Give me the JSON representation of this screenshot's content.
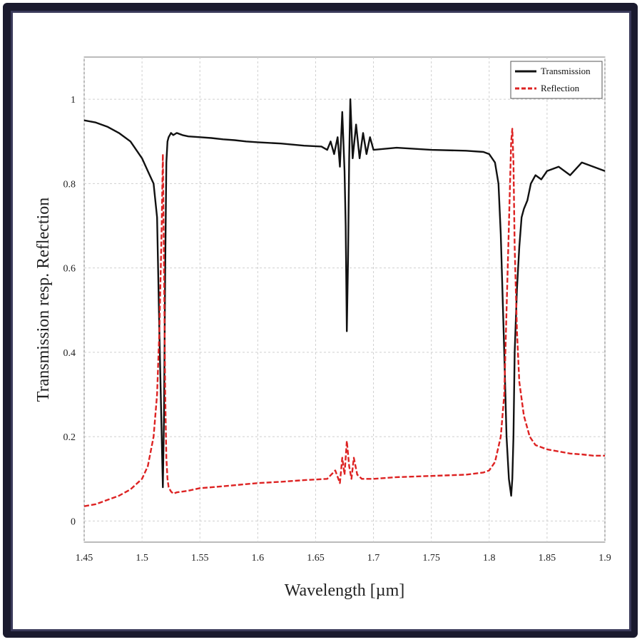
{
  "chart_data": {
    "type": "line",
    "xlabel": "Wavelength [µm]",
    "ylabel": "Transmission resp. Reflection",
    "xlim": [
      1.45,
      1.9
    ],
    "ylim": [
      -0.05,
      1.1
    ],
    "x_ticks": [
      1.45,
      1.5,
      1.55,
      1.6,
      1.65,
      1.7,
      1.75,
      1.8,
      1.85,
      1.9
    ],
    "x_tick_labels": [
      "1.45",
      "1.5",
      "1.55",
      "1.6",
      "1.65",
      "1.7",
      "1.75",
      "1.8",
      "1.85",
      "1.9"
    ],
    "y_ticks": [
      0,
      0.2,
      0.4,
      0.6,
      0.8,
      1
    ],
    "y_tick_labels": [
      "0",
      "0.2",
      "0.4",
      "0.6",
      "0.8",
      "1"
    ],
    "grid": true,
    "legend_position": "top-right",
    "series": [
      {
        "name": "Transmission",
        "color": "#111111",
        "style": "solid",
        "x": [
          1.45,
          1.46,
          1.47,
          1.48,
          1.49,
          1.5,
          1.505,
          1.51,
          1.513,
          1.515,
          1.517,
          1.518,
          1.519,
          1.52,
          1.521,
          1.522,
          1.523,
          1.525,
          1.527,
          1.53,
          1.535,
          1.54,
          1.55,
          1.56,
          1.57,
          1.58,
          1.59,
          1.6,
          1.62,
          1.64,
          1.655,
          1.66,
          1.663,
          1.666,
          1.669,
          1.671,
          1.673,
          1.675,
          1.676,
          1.677,
          1.678,
          1.679,
          1.68,
          1.682,
          1.685,
          1.688,
          1.691,
          1.694,
          1.697,
          1.7,
          1.72,
          1.75,
          1.78,
          1.795,
          1.8,
          1.805,
          1.808,
          1.81,
          1.813,
          1.815,
          1.817,
          1.819,
          1.82,
          1.821,
          1.822,
          1.824,
          1.826,
          1.828,
          1.83,
          1.833,
          1.836,
          1.84,
          1.845,
          1.85,
          1.86,
          1.87,
          1.88,
          1.89,
          1.9
        ],
        "y": [
          0.95,
          0.945,
          0.935,
          0.92,
          0.9,
          0.86,
          0.83,
          0.8,
          0.72,
          0.45,
          0.2,
          0.08,
          0.25,
          0.6,
          0.85,
          0.9,
          0.91,
          0.92,
          0.915,
          0.92,
          0.915,
          0.912,
          0.91,
          0.908,
          0.905,
          0.903,
          0.9,
          0.898,
          0.895,
          0.89,
          0.888,
          0.88,
          0.9,
          0.87,
          0.91,
          0.84,
          0.97,
          0.83,
          0.7,
          0.45,
          0.62,
          0.86,
          1.0,
          0.86,
          0.94,
          0.86,
          0.92,
          0.87,
          0.91,
          0.88,
          0.885,
          0.88,
          0.878,
          0.875,
          0.87,
          0.85,
          0.8,
          0.68,
          0.4,
          0.2,
          0.1,
          0.06,
          0.1,
          0.2,
          0.4,
          0.55,
          0.65,
          0.72,
          0.74,
          0.76,
          0.8,
          0.82,
          0.81,
          0.83,
          0.84,
          0.82,
          0.85,
          0.84,
          0.83
        ]
      },
      {
        "name": "Reflection",
        "color": "#dd2222",
        "style": "dashed",
        "x": [
          1.45,
          1.46,
          1.47,
          1.48,
          1.49,
          1.5,
          1.505,
          1.51,
          1.513,
          1.515,
          1.517,
          1.518,
          1.519,
          1.52,
          1.521,
          1.522,
          1.523,
          1.525,
          1.527,
          1.53,
          1.54,
          1.55,
          1.56,
          1.58,
          1.6,
          1.62,
          1.64,
          1.66,
          1.667,
          1.671,
          1.673,
          1.675,
          1.677,
          1.679,
          1.681,
          1.683,
          1.686,
          1.69,
          1.7,
          1.72,
          1.75,
          1.78,
          1.795,
          1.8,
          1.805,
          1.81,
          1.813,
          1.815,
          1.817,
          1.819,
          1.82,
          1.821,
          1.822,
          1.824,
          1.826,
          1.83,
          1.835,
          1.84,
          1.85,
          1.86,
          1.87,
          1.88,
          1.89,
          1.9
        ],
        "y": [
          0.035,
          0.04,
          0.05,
          0.06,
          0.075,
          0.1,
          0.13,
          0.2,
          0.3,
          0.45,
          0.7,
          0.87,
          0.6,
          0.3,
          0.15,
          0.1,
          0.08,
          0.07,
          0.065,
          0.068,
          0.072,
          0.078,
          0.08,
          0.085,
          0.09,
          0.093,
          0.097,
          0.1,
          0.12,
          0.09,
          0.15,
          0.11,
          0.19,
          0.13,
          0.1,
          0.15,
          0.11,
          0.1,
          0.1,
          0.104,
          0.107,
          0.11,
          0.115,
          0.12,
          0.14,
          0.2,
          0.3,
          0.5,
          0.7,
          0.9,
          0.93,
          0.85,
          0.65,
          0.45,
          0.33,
          0.25,
          0.2,
          0.18,
          0.17,
          0.165,
          0.16,
          0.158,
          0.155,
          0.155
        ]
      }
    ]
  }
}
